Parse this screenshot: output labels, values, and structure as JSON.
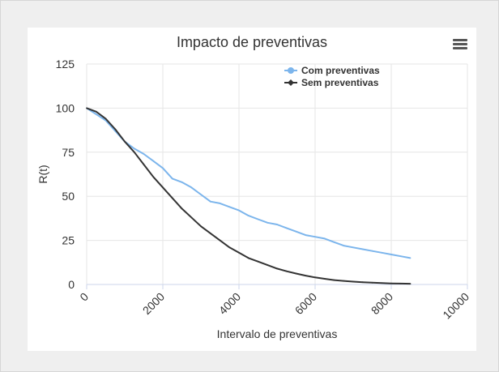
{
  "chart_data": {
    "type": "line",
    "title": "Impacto de preventivas",
    "xlabel": "Intervalo de preventivas",
    "ylabel": "R(t)",
    "xlim": [
      0,
      10000
    ],
    "ylim": [
      0,
      125
    ],
    "x_ticks": [
      "0",
      "2000",
      "4000",
      "6000",
      "8000",
      "10000"
    ],
    "y_ticks": [
      "0",
      "25",
      "50",
      "75",
      "100",
      "125"
    ],
    "grid": true,
    "legend_position": "top-right",
    "series": [
      {
        "name": "Com preventivas",
        "color": "#7cb5ec",
        "x": [
          0,
          500,
          1000,
          1250,
          1500,
          1750,
          2000,
          2250,
          2500,
          2750,
          3000,
          3250,
          3500,
          3750,
          4000,
          4250,
          4500,
          4750,
          5000,
          5250,
          5500,
          5750,
          6000,
          6250,
          6500,
          6750,
          7000,
          7250,
          7500,
          7750,
          8000,
          8250,
          8500
        ],
        "values": [
          100,
          93,
          81,
          77,
          74,
          70,
          66,
          60,
          58,
          55,
          51,
          47,
          46,
          44,
          42,
          39,
          37,
          35,
          34,
          32,
          30,
          28,
          27,
          26,
          24,
          22,
          21,
          20,
          19,
          18,
          17,
          16,
          15
        ]
      },
      {
        "name": "Sem preventivas",
        "color": "#333333",
        "x": [
          0,
          250,
          500,
          750,
          1000,
          1250,
          1500,
          1750,
          2000,
          2250,
          2500,
          2750,
          3000,
          3250,
          3500,
          3750,
          4000,
          4250,
          4500,
          4750,
          5000,
          5250,
          5500,
          5750,
          6000,
          6250,
          6500,
          6750,
          7000,
          7250,
          7500,
          7750,
          8000,
          8250,
          8500
        ],
        "values": [
          100,
          98,
          94,
          88,
          81,
          75,
          68,
          61,
          55,
          49,
          43,
          38,
          33,
          29,
          25,
          21,
          18,
          15,
          13,
          11,
          9,
          7.5,
          6.2,
          5,
          4,
          3.2,
          2.5,
          2,
          1.6,
          1.3,
          1,
          0.8,
          0.6,
          0.5,
          0.4
        ]
      }
    ]
  },
  "icons": {
    "menu": "hamburger-menu-icon"
  }
}
